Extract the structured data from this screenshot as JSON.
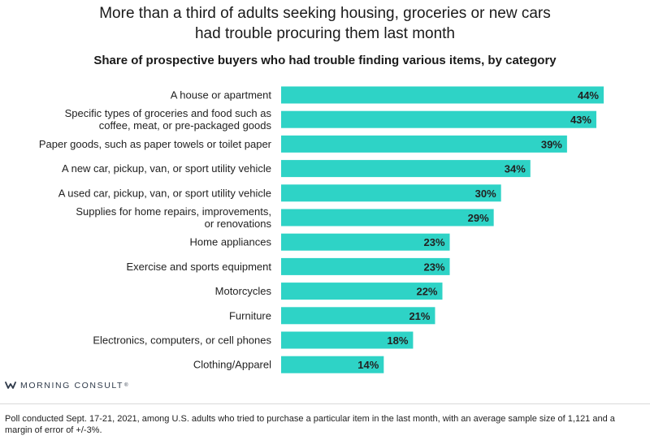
{
  "header": {
    "title_line1": "More than a third of adults seeking housing, groceries or new cars",
    "title_line2": "had trouble procuring them last month",
    "subtitle": "Share of prospective buyers who had trouble finding various items, by category"
  },
  "colors": {
    "bar": "#2ED3C6",
    "text": "#222222"
  },
  "chart_data": {
    "type": "bar",
    "orientation": "horizontal",
    "title": "More than a third of adults seeking housing, groceries or new cars had trouble procuring them last month",
    "subtitle": "Share of prospective buyers who had trouble finding various items, by category",
    "categories": [
      [
        "A house or apartment"
      ],
      [
        "Specific types of groceries and food such as",
        "coffee, meat, or pre-packaged goods"
      ],
      [
        "Paper goods, such as paper towels or toilet paper"
      ],
      [
        "A new car, pickup, van, or sport utility vehicle"
      ],
      [
        "A used car, pickup, van, or sport utility vehicle"
      ],
      [
        "Supplies for home repairs, improvements,",
        "or renovations"
      ],
      [
        "Home appliances"
      ],
      [
        "Exercise and sports equipment"
      ],
      [
        "Motorcycles"
      ],
      [
        "Furniture"
      ],
      [
        "Electronics, computers, or cell phones"
      ],
      [
        "Clothing/Apparel"
      ]
    ],
    "values": [
      44,
      43,
      39,
      34,
      30,
      29,
      23,
      23,
      22,
      21,
      18,
      14
    ],
    "value_labels": [
      "44%",
      "43%",
      "39%",
      "34%",
      "30%",
      "29%",
      "23%",
      "23%",
      "22%",
      "21%",
      "18%",
      "14%"
    ],
    "unit": "%",
    "xlim": [
      0,
      44
    ],
    "grid": false,
    "legend": "none"
  },
  "branding": {
    "logo_text": "MORNING CONSULT",
    "trademark": "®"
  },
  "footnote": "Poll conducted Sept. 17-21, 2021, among U.S. adults who tried to purchase a particular item in the last month, with an average sample size of 1,121 and a margin of error of +/-3%."
}
